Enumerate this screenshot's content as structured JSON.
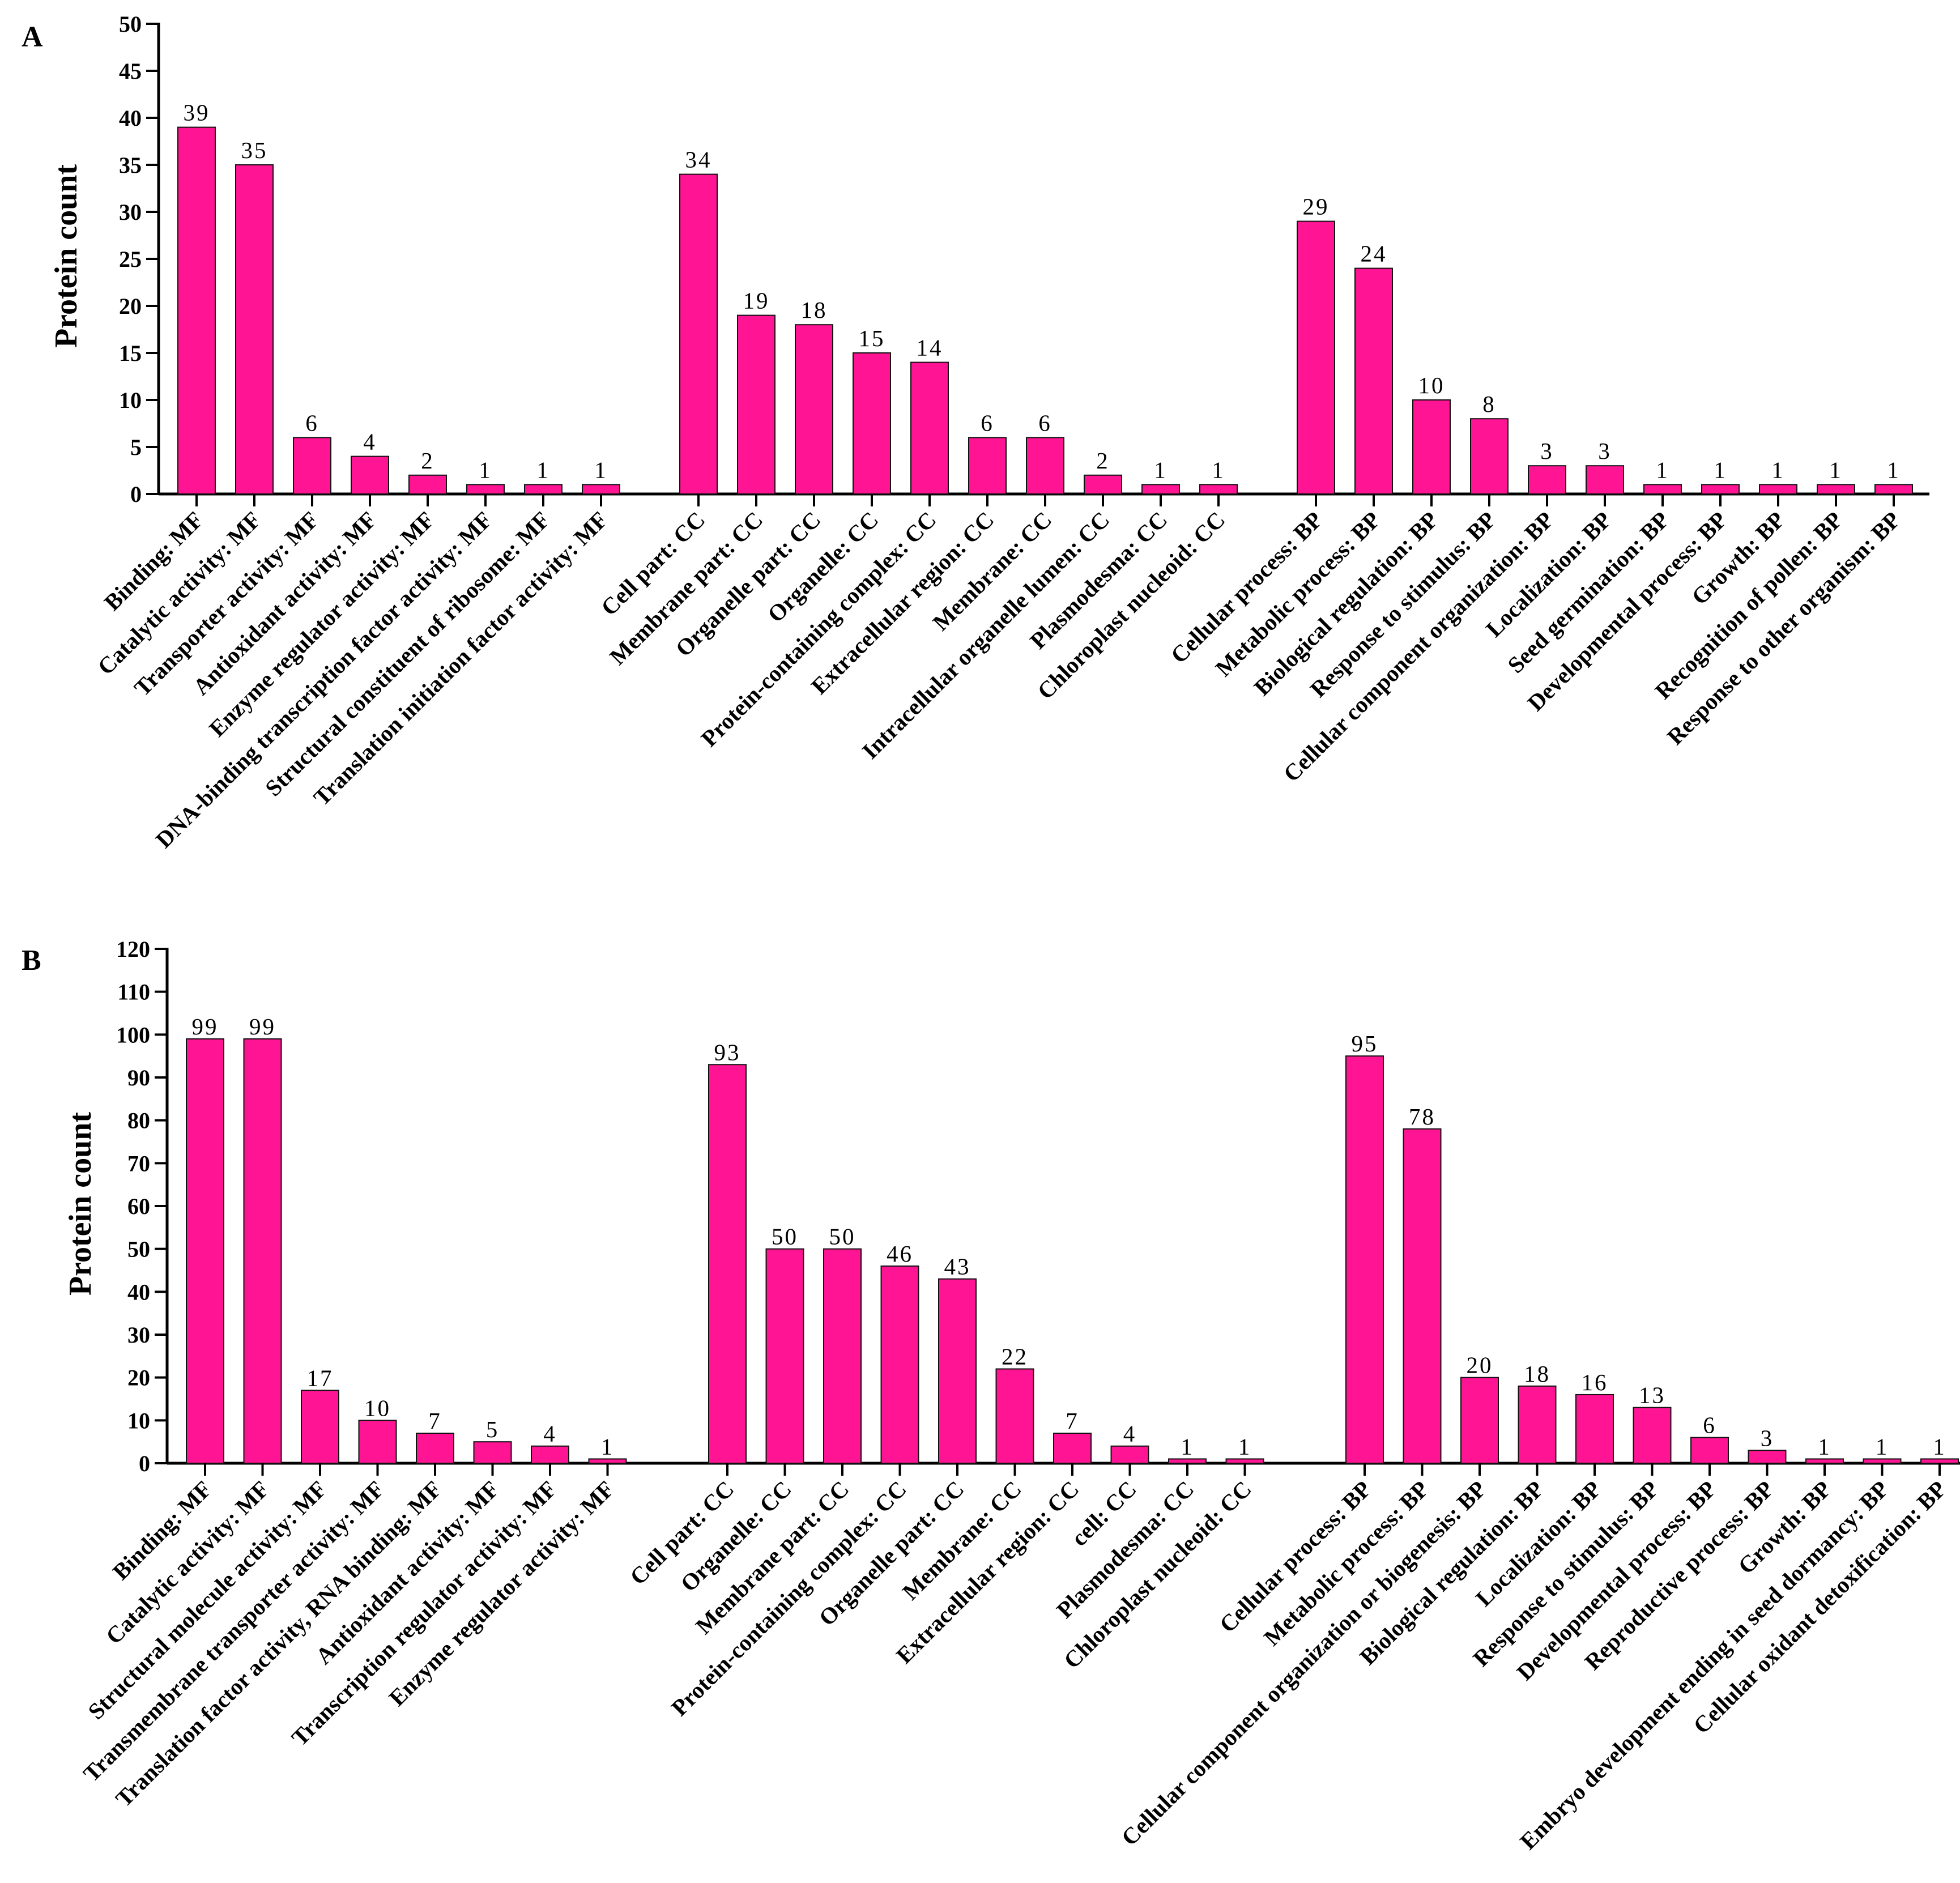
{
  "chart_data": [
    {
      "panel": "A",
      "type": "bar",
      "ylabel": "Protein count",
      "ylim": [
        0,
        50
      ],
      "yticks": [
        0,
        5,
        10,
        15,
        20,
        25,
        30,
        35,
        40,
        45,
        50
      ],
      "color": "#FF1493",
      "groups": [
        {
          "name": "MF",
          "categories": [
            "Binding: MF",
            "Catalytic activity: MF",
            "Transporter activity: MF",
            "Antioxidant activity: MF",
            "Enzyme regulator activity: MF",
            "DNA-binding transcription factor activity: MF",
            "Structural constituent of ribosome: MF",
            "Translation initiation factor activity: MF"
          ],
          "values": [
            39,
            35,
            6,
            4,
            2,
            1,
            1,
            1
          ]
        },
        {
          "name": "CC",
          "categories": [
            "Cell part: CC",
            "Membrane part: CC",
            "Organelle part: CC",
            "Organelle: CC",
            "Protein-containing complex: CC",
            "Extracellular region: CC",
            "Membrane: CC",
            "Intracellular organelle lumen: CC",
            "Plasmodesma: CC",
            "Chloroplast nucleoid: CC"
          ],
          "values": [
            34,
            19,
            18,
            15,
            14,
            6,
            6,
            2,
            1,
            1
          ]
        },
        {
          "name": "BP",
          "categories": [
            "Cellular process: BP",
            "Metabolic process: BP",
            "Biological regulation: BP",
            "Response to stimulus: BP",
            "Cellular component organization: BP",
            "Localization: BP",
            "Seed germination: BP",
            "Developmental process: BP",
            "Growth: BP",
            "Recognition of pollen: BP",
            "Response to other organism: BP"
          ],
          "values": [
            29,
            24,
            10,
            8,
            3,
            3,
            1,
            1,
            1,
            1,
            1
          ]
        }
      ]
    },
    {
      "panel": "B",
      "type": "bar",
      "ylabel": "Protein count",
      "ylim": [
        0,
        120
      ],
      "yticks": [
        0,
        10,
        20,
        30,
        40,
        50,
        60,
        70,
        80,
        90,
        100,
        110,
        120
      ],
      "color": "#FF1493",
      "groups": [
        {
          "name": "MF",
          "categories": [
            "Binding: MF",
            "Catalytic activity: MF",
            "Structural molecule activity: MF",
            "Transmembrane transporter activity: MF",
            "Translation factor activity, RNA binding: MF",
            "Antioxidant activity: MF",
            "Transcription regulator activity: MF",
            "Enzyme regulator activity: MF"
          ],
          "values": [
            99,
            99,
            17,
            10,
            7,
            5,
            4,
            1
          ]
        },
        {
          "name": "CC",
          "categories": [
            "Cell part: CC",
            "Organelle: CC",
            "Membrane part: CC",
            "Protein-containing complex: CC",
            "Organelle part: CC",
            "Membrane: CC",
            "Extracellular region: CC",
            "cell: CC",
            "Plasmodesma: CC",
            "Chloroplast nucleoid: CC"
          ],
          "values": [
            93,
            50,
            50,
            46,
            43,
            22,
            7,
            4,
            1,
            1
          ]
        },
        {
          "name": "BP",
          "categories": [
            "Cellular process: BP",
            "Metabolic process: BP",
            "Cellular component organization or biogenesis: BP",
            "Biological regulation: BP",
            "Localization: BP",
            "Response to stimulus: BP",
            "Developmental process: BP",
            "Reproductive process: BP",
            "Growth: BP",
            "Embryo development ending in seed dormancy: BP",
            "Cellular oxidant detoxification: BP"
          ],
          "values": [
            95,
            78,
            20,
            18,
            16,
            13,
            6,
            3,
            1,
            1,
            1
          ]
        }
      ]
    }
  ]
}
